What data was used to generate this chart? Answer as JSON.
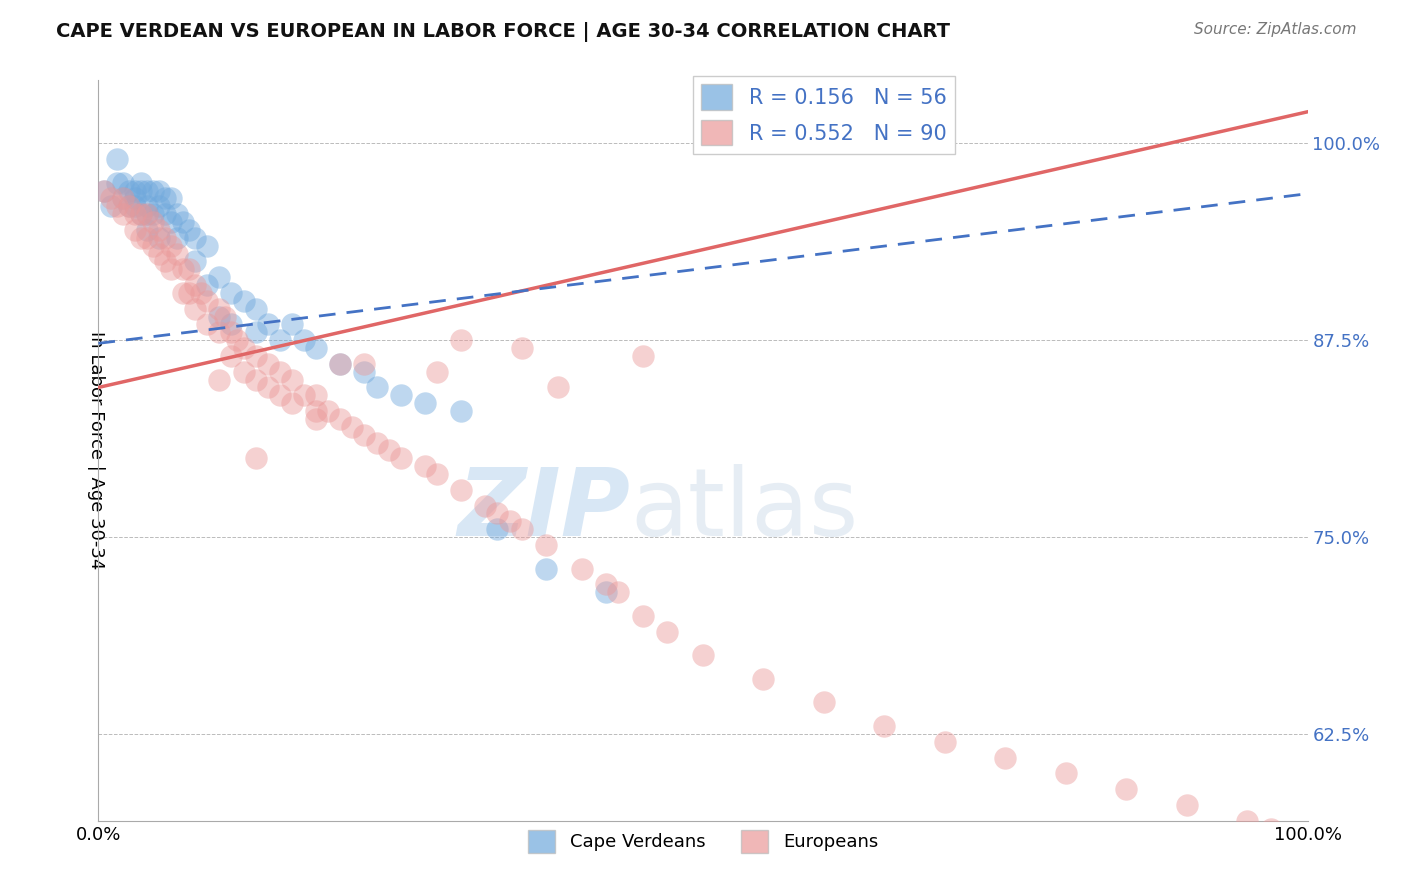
{
  "title": "CAPE VERDEAN VS EUROPEAN IN LABOR FORCE | AGE 30-34 CORRELATION CHART",
  "source": "Source: ZipAtlas.com",
  "ylabel": "In Labor Force | Age 30-34",
  "xlim": [
    0.0,
    1.0
  ],
  "ylim": [
    0.57,
    1.04
  ],
  "yticks": [
    0.625,
    0.75,
    0.875,
    1.0
  ],
  "ytick_labels": [
    "62.5%",
    "75.0%",
    "87.5%",
    "100.0%"
  ],
  "cape_verdean_color": "#6fa8dc",
  "european_color": "#ea9999",
  "trend_cape_color": "#4472c4",
  "trend_euro_color": "#e06666",
  "legend_R_cape": "R = 0.156",
  "legend_N_cape": "N = 56",
  "legend_R_euro": "R = 0.552",
  "legend_N_euro": "N = 90",
  "watermark_zip": "ZIP",
  "watermark_atlas": "atlas",
  "source_text": "Source: ZipAtlas.com",
  "legend_text_color": "#4472c4",
  "slope_cape": 0.095,
  "intercept_cape": 0.873,
  "slope_euro": 0.175,
  "intercept_euro": 0.845,
  "cape_x": [
    0.005,
    0.01,
    0.015,
    0.015,
    0.02,
    0.02,
    0.025,
    0.025,
    0.03,
    0.03,
    0.03,
    0.035,
    0.035,
    0.035,
    0.04,
    0.04,
    0.04,
    0.04,
    0.045,
    0.045,
    0.05,
    0.05,
    0.05,
    0.055,
    0.055,
    0.06,
    0.06,
    0.065,
    0.065,
    0.07,
    0.075,
    0.08,
    0.08,
    0.09,
    0.09,
    0.1,
    0.1,
    0.11,
    0.11,
    0.12,
    0.13,
    0.13,
    0.14,
    0.15,
    0.16,
    0.17,
    0.18,
    0.2,
    0.22,
    0.23,
    0.25,
    0.27,
    0.3,
    0.33,
    0.37,
    0.42
  ],
  "cape_y": [
    0.97,
    0.96,
    0.99,
    0.975,
    0.975,
    0.965,
    0.97,
    0.96,
    0.97,
    0.965,
    0.96,
    0.975,
    0.97,
    0.955,
    0.97,
    0.96,
    0.955,
    0.945,
    0.97,
    0.955,
    0.97,
    0.96,
    0.94,
    0.965,
    0.955,
    0.965,
    0.95,
    0.955,
    0.94,
    0.95,
    0.945,
    0.94,
    0.925,
    0.935,
    0.91,
    0.915,
    0.89,
    0.905,
    0.885,
    0.9,
    0.895,
    0.88,
    0.885,
    0.875,
    0.885,
    0.875,
    0.87,
    0.86,
    0.855,
    0.845,
    0.84,
    0.835,
    0.83,
    0.755,
    0.73,
    0.715
  ],
  "euro_x": [
    0.005,
    0.01,
    0.015,
    0.02,
    0.02,
    0.025,
    0.03,
    0.03,
    0.035,
    0.035,
    0.04,
    0.04,
    0.045,
    0.045,
    0.05,
    0.05,
    0.055,
    0.055,
    0.06,
    0.06,
    0.065,
    0.07,
    0.07,
    0.075,
    0.075,
    0.08,
    0.08,
    0.085,
    0.09,
    0.09,
    0.1,
    0.1,
    0.105,
    0.11,
    0.11,
    0.115,
    0.12,
    0.12,
    0.13,
    0.13,
    0.14,
    0.14,
    0.15,
    0.15,
    0.16,
    0.16,
    0.17,
    0.18,
    0.18,
    0.19,
    0.2,
    0.21,
    0.22,
    0.23,
    0.24,
    0.25,
    0.27,
    0.28,
    0.3,
    0.32,
    0.33,
    0.34,
    0.35,
    0.37,
    0.4,
    0.42,
    0.43,
    0.45,
    0.47,
    0.5,
    0.55,
    0.6,
    0.65,
    0.7,
    0.75,
    0.8,
    0.85,
    0.9,
    0.95,
    0.97,
    0.1,
    0.13,
    0.2,
    0.3,
    0.35,
    0.45,
    0.22,
    0.18,
    0.38,
    0.28
  ],
  "euro_y": [
    0.97,
    0.965,
    0.96,
    0.965,
    0.955,
    0.96,
    0.955,
    0.945,
    0.955,
    0.94,
    0.955,
    0.94,
    0.95,
    0.935,
    0.945,
    0.93,
    0.94,
    0.925,
    0.935,
    0.92,
    0.93,
    0.92,
    0.905,
    0.92,
    0.905,
    0.91,
    0.895,
    0.905,
    0.9,
    0.885,
    0.895,
    0.88,
    0.89,
    0.88,
    0.865,
    0.875,
    0.87,
    0.855,
    0.865,
    0.85,
    0.86,
    0.845,
    0.855,
    0.84,
    0.85,
    0.835,
    0.84,
    0.84,
    0.825,
    0.83,
    0.825,
    0.82,
    0.815,
    0.81,
    0.805,
    0.8,
    0.795,
    0.79,
    0.78,
    0.77,
    0.765,
    0.76,
    0.755,
    0.745,
    0.73,
    0.72,
    0.715,
    0.7,
    0.69,
    0.675,
    0.66,
    0.645,
    0.63,
    0.62,
    0.61,
    0.6,
    0.59,
    0.58,
    0.57,
    0.565,
    0.85,
    0.8,
    0.86,
    0.875,
    0.87,
    0.865,
    0.86,
    0.83,
    0.845,
    0.855
  ]
}
